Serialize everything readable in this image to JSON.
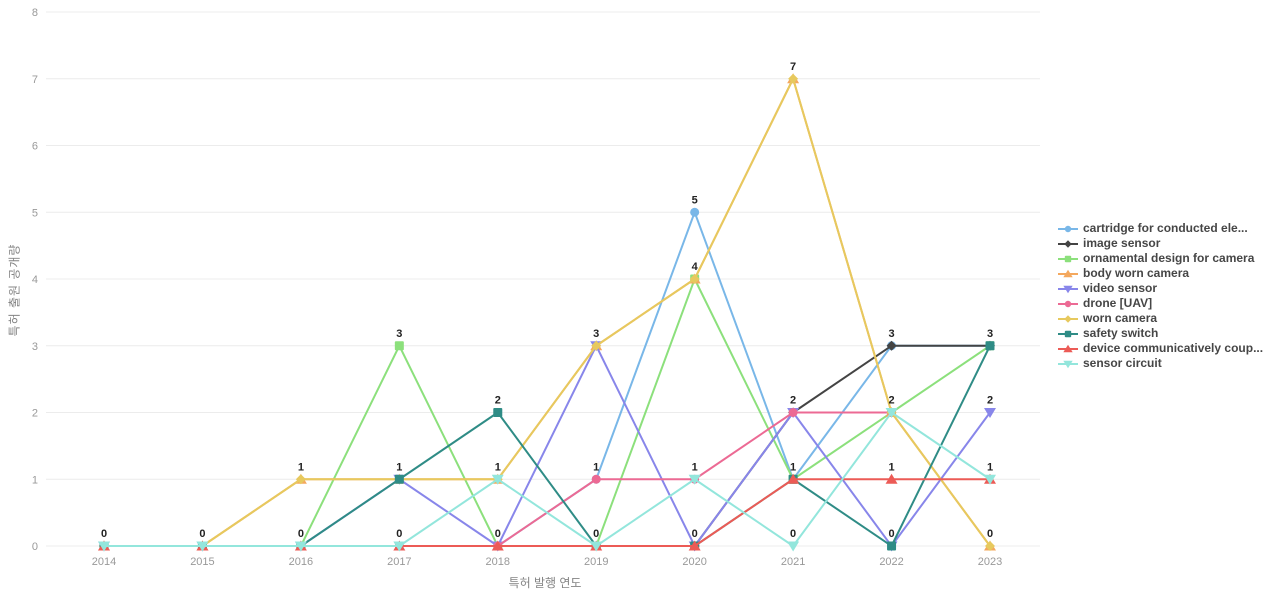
{
  "chart_data": {
    "type": "line",
    "title": "",
    "xlabel": "특허 발행 연도",
    "ylabel": "특허 출원 공개량",
    "categories": [
      "2014",
      "2015",
      "2016",
      "2017",
      "2018",
      "2019",
      "2020",
      "2021",
      "2022",
      "2023"
    ],
    "ylim": [
      0,
      8
    ],
    "yticks": [
      0,
      1,
      2,
      3,
      4,
      5,
      6,
      7,
      8
    ],
    "grid": true,
    "legend_position": "right",
    "value_labels": true,
    "series": [
      {
        "name": "cartridge for conducted ele...",
        "color": "#79b7e8",
        "marker": "circle",
        "values": [
          0,
          0,
          0,
          0,
          0,
          1,
          5,
          1,
          3,
          3
        ]
      },
      {
        "name": "image sensor",
        "color": "#444444",
        "marker": "diamond",
        "values": [
          0,
          0,
          0,
          0,
          0,
          0,
          0,
          2,
          3,
          3
        ]
      },
      {
        "name": "ornamental design for camera",
        "color": "#8ce07c",
        "marker": "square",
        "values": [
          0,
          0,
          0,
          3,
          0,
          0,
          4,
          1,
          2,
          3
        ]
      },
      {
        "name": "body worn camera",
        "color": "#f4a85e",
        "marker": "triangle-up",
        "values": [
          0,
          0,
          1,
          1,
          1,
          3,
          4,
          7,
          2,
          0
        ]
      },
      {
        "name": "video sensor",
        "color": "#8886ea",
        "marker": "triangle-down",
        "values": [
          0,
          0,
          0,
          1,
          0,
          3,
          0,
          2,
          0,
          2
        ]
      },
      {
        "name": "drone [UAV]",
        "color": "#ec6a94",
        "marker": "circle",
        "values": [
          0,
          0,
          0,
          0,
          0,
          1,
          1,
          2,
          2,
          null
        ]
      },
      {
        "name": "worn camera",
        "color": "#e7c95e",
        "marker": "diamond",
        "values": [
          0,
          0,
          1,
          1,
          1,
          3,
          4,
          7,
          2,
          0
        ]
      },
      {
        "name": "safety switch",
        "color": "#2f8c86",
        "marker": "square",
        "values": [
          0,
          0,
          0,
          1,
          2,
          0,
          0,
          1,
          0,
          3
        ]
      },
      {
        "name": "device communicatively coup...",
        "color": "#ec5b56",
        "marker": "triangle-up",
        "values": [
          0,
          0,
          0,
          0,
          0,
          0,
          0,
          1,
          1,
          1
        ]
      },
      {
        "name": "sensor circuit",
        "color": "#93e6dc",
        "marker": "triangle-down",
        "values": [
          0,
          0,
          0,
          0,
          1,
          0,
          1,
          0,
          2,
          1
        ]
      }
    ],
    "colors": {
      "grid": "#ececec",
      "tick_text": "#999999",
      "value_label": "#222222",
      "axis_title": "#848484",
      "legend_text": "#464646",
      "background": "#ffffff"
    }
  }
}
